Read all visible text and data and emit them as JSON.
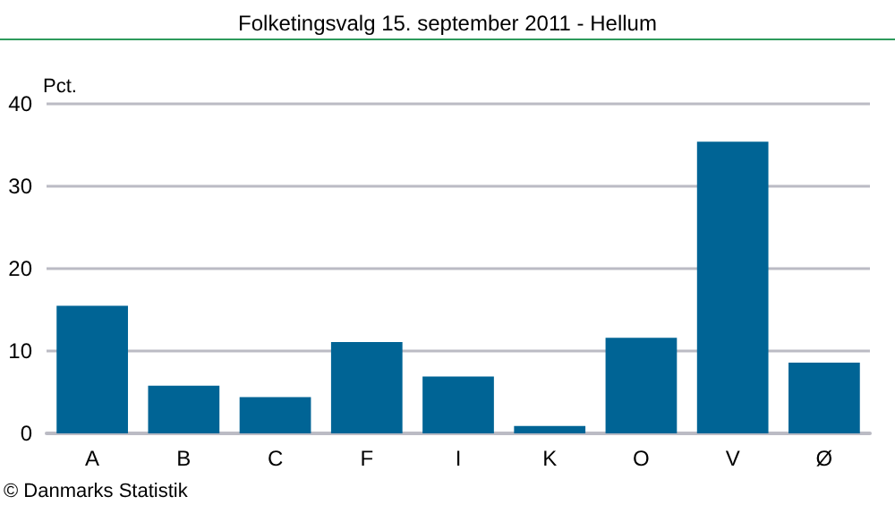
{
  "chart_data": {
    "type": "bar",
    "title": "Folketingsvalg 15. september 2011 - Hellum",
    "ylabel": "Pct.",
    "categories": [
      "A",
      "B",
      "C",
      "F",
      "I",
      "K",
      "O",
      "V",
      "Ø"
    ],
    "values": [
      15.5,
      5.8,
      4.4,
      11.1,
      6.9,
      0.9,
      11.6,
      35.4,
      8.6
    ],
    "color": "#006495",
    "ylim": [
      0,
      40
    ],
    "yticks": [
      0,
      10,
      20,
      30,
      40
    ],
    "grid": "y",
    "annotations": [
      "© Danmarks Statistik"
    ]
  }
}
